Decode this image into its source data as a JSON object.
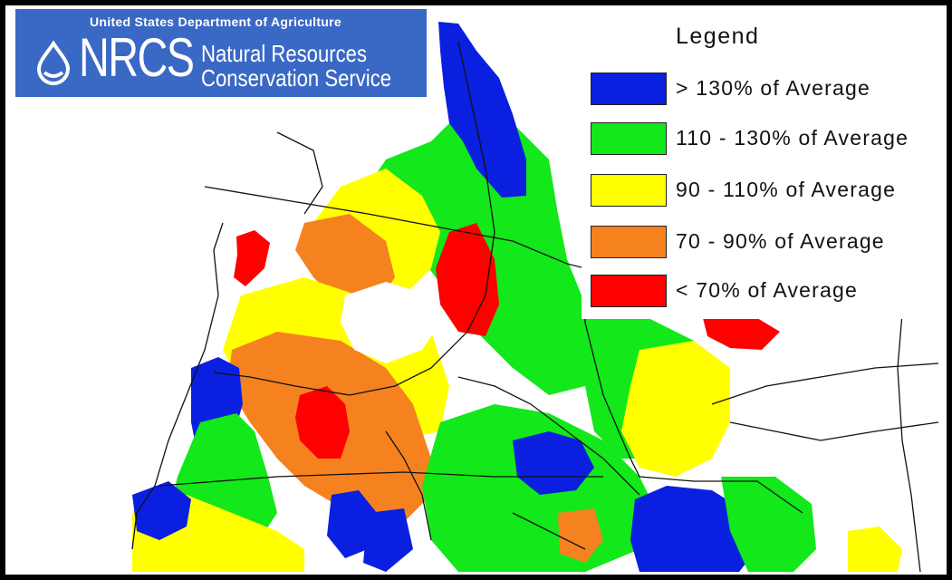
{
  "logo": {
    "agency": "United States Department of Agriculture",
    "abbreviation": "NRCS",
    "line1": "Natural Resources",
    "line2": "Conservation Service",
    "background": "#3a68c5"
  },
  "legend": {
    "title": "Legend",
    "items": [
      {
        "label": "> 130% of Average",
        "color": "#0a1fe0"
      },
      {
        "label": "110 - 130% of Average",
        "color": "#12e81a"
      },
      {
        "label": "90 - 110% of Average",
        "color": "#ffff00"
      },
      {
        "label": "70 - 90% of Average",
        "color": "#f5821f"
      },
      {
        "label": "< 70% of Average",
        "color": "#ff0000"
      }
    ]
  }
}
